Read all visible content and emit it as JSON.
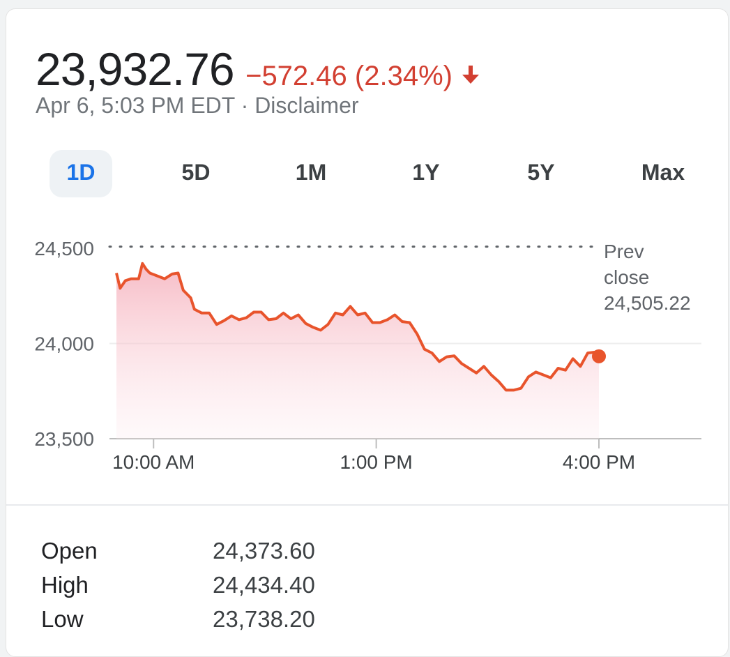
{
  "header": {
    "price": "23,932.76",
    "change": "−572.46 (2.34%)",
    "timestamp": "Apr 6, 5:03 PM EDT",
    "separator": "·",
    "disclaimer": "Disclaimer"
  },
  "colors": {
    "negative": "#d23f31",
    "line": "#e8542c",
    "accent": "#1a73e8"
  },
  "tabs": [
    {
      "label": "1D",
      "active": true
    },
    {
      "label": "5D",
      "active": false
    },
    {
      "label": "1M",
      "active": false
    },
    {
      "label": "1Y",
      "active": false
    },
    {
      "label": "5Y",
      "active": false
    },
    {
      "label": "Max",
      "active": false
    }
  ],
  "chart_data": {
    "type": "area",
    "y_ticks": [
      {
        "value": 24500,
        "label": "24,500"
      },
      {
        "value": 24000,
        "label": "24,000"
      },
      {
        "value": 23500,
        "label": "23,500"
      }
    ],
    "x_ticks": [
      {
        "value": 10.0,
        "label": "10:00 AM"
      },
      {
        "value": 13.0,
        "label": "1:00 PM"
      },
      {
        "value": 16.0,
        "label": "4:00 PM"
      }
    ],
    "ylim": [
      23500,
      24500
    ],
    "xlim": [
      9.5,
      17.0
    ],
    "prev_close": {
      "value": 24505.22,
      "label_line1": "Prev",
      "label_line2": "close",
      "label_value": "24,505.22"
    },
    "last_point": {
      "x": 16.0,
      "y": 23932.76
    },
    "x": [
      9.5,
      9.55,
      9.62,
      9.7,
      9.8,
      9.85,
      9.9,
      9.95,
      10.05,
      10.15,
      10.25,
      10.33,
      10.4,
      10.5,
      10.55,
      10.65,
      10.75,
      10.85,
      10.95,
      11.05,
      11.15,
      11.25,
      11.35,
      11.45,
      11.55,
      11.65,
      11.75,
      11.85,
      11.95,
      12.05,
      12.15,
      12.25,
      12.35,
      12.45,
      12.55,
      12.65,
      12.75,
      12.85,
      12.95,
      13.05,
      13.15,
      13.25,
      13.35,
      13.45,
      13.55,
      13.65,
      13.75,
      13.85,
      13.95,
      14.05,
      14.15,
      14.25,
      14.35,
      14.45,
      14.55,
      14.65,
      14.75,
      14.85,
      14.95,
      15.05,
      15.15,
      15.25,
      15.35,
      15.45,
      15.55,
      15.65,
      15.75,
      15.85,
      15.95,
      16.0
    ],
    "y": [
      24370,
      24290,
      24330,
      24340,
      24340,
      24420,
      24390,
      24370,
      24355,
      24340,
      24365,
      24370,
      24280,
      24240,
      24180,
      24160,
      24160,
      24100,
      24120,
      24145,
      24125,
      24135,
      24165,
      24165,
      24125,
      24130,
      24160,
      24130,
      24150,
      24105,
      24085,
      24070,
      24100,
      24160,
      24150,
      24195,
      24150,
      24160,
      24110,
      24110,
      24125,
      24150,
      24115,
      24110,
      24050,
      23970,
      23950,
      23905,
      23930,
      23935,
      23895,
      23870,
      23845,
      23880,
      23835,
      23800,
      23755,
      23755,
      23765,
      23825,
      23850,
      23835,
      23820,
      23870,
      23860,
      23920,
      23880,
      23950,
      23955,
      23932.76
    ]
  },
  "stats": [
    {
      "label": "Open",
      "value": "24,373.60"
    },
    {
      "label": "High",
      "value": "24,434.40"
    },
    {
      "label": "Low",
      "value": "23,738.20"
    }
  ]
}
